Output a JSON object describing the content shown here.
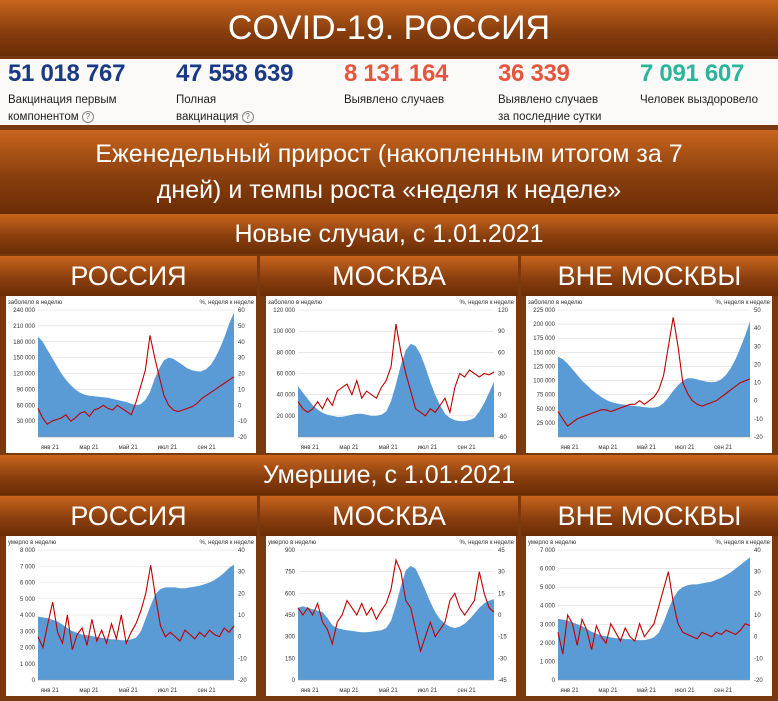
{
  "header": {
    "title": "COVID-19. РОССИЯ"
  },
  "stats": [
    {
      "value": "51 018 767",
      "label_1": "Вакцинация первым",
      "label_2": "компонентом",
      "color": "#1a3a86",
      "has_info": true
    },
    {
      "value": "47 558 639",
      "label_1": "Полная",
      "label_2": "вакцинация",
      "color": "#1a3a86",
      "has_info": true
    },
    {
      "value": "8 131 164",
      "label_1": "Выявлено случаев",
      "label_2": "",
      "color": "#e8553f",
      "has_info": false
    },
    {
      "value": "36 339",
      "label_1": "Выявлено случаев",
      "label_2": "за последние сутки",
      "color": "#e8553f",
      "has_info": false
    },
    {
      "value": "7 091 607",
      "label_1": "Человек выздоровело",
      "label_2": "",
      "color": "#2bb59a",
      "has_info": false
    }
  ],
  "sections": {
    "weekly_line_1": "Еженедельный прирост (накопленным итогом за 7",
    "weekly_line_2": "дней) и темпы роста «неделя к неделе»",
    "new_cases": "Новые случаи, с 1.01.2021",
    "deaths": "Умершие, с 1.01.2021"
  },
  "panel_titles": {
    "russia": "РОССИЯ",
    "moscow": "МОСКВА",
    "outside": "ВНЕ МОСКВЫ"
  },
  "colors": {
    "area": "#5b9bd5",
    "line": "#c00000",
    "band": "#8a3f0e"
  },
  "chart_data": [
    {
      "id": "cases-russia",
      "type": "area",
      "ylabel_left": "заболело в неделю",
      "ylabel_right": "%, неделя к неделе",
      "x_ticks": [
        "янв 21",
        "мар 21",
        "май 21",
        "июл 21",
        "сен 21"
      ],
      "y_left_ticks": [
        0,
        30000,
        60000,
        90000,
        120000,
        150000,
        180000,
        210000,
        240000
      ],
      "y_left_ticks_shown": [
        "",
        "30 000",
        "60 000",
        "90 000",
        "120 000",
        "150 000",
        "180 000",
        "210 000",
        "240 000"
      ],
      "y_right_ticks": [
        -20,
        -10,
        0,
        10,
        20,
        30,
        40,
        50,
        60
      ],
      "ylim_left": [
        0,
        240000
      ],
      "ylim_right": [
        -20,
        60
      ],
      "series": [
        {
          "values": [
            190000,
            180000,
            165000,
            150000,
            135000,
            120000,
            108000,
            98000,
            90000,
            84000,
            80000,
            78000,
            77000,
            76000,
            75000,
            74000,
            72000,
            70000,
            68000,
            66000,
            63000,
            60000,
            62000,
            70000,
            85000,
            110000,
            130000,
            145000,
            150000,
            148000,
            142000,
            136000,
            130000,
            126000,
            124000,
            124000,
            128000,
            136000,
            150000,
            168000,
            190000,
            215000,
            235000
          ]
        },
        {
          "values": [
            -2,
            -8,
            -12,
            -10,
            -9,
            -8,
            -6,
            -10,
            -8,
            -5,
            -4,
            -7,
            -3,
            -2,
            0,
            -2,
            -3,
            0,
            -2,
            -4,
            -6,
            2,
            12,
            22,
            44,
            30,
            18,
            6,
            0,
            -3,
            -4,
            -3,
            -2,
            -1,
            1,
            4,
            6,
            8,
            10,
            12,
            14,
            16,
            18
          ]
        }
      ]
    },
    {
      "id": "cases-moscow",
      "type": "area",
      "ylabel_left": "заболело в неделю",
      "ylabel_right": "%, неделя к неделе",
      "x_ticks": [
        "янв 21",
        "мар 21",
        "май 21",
        "июл 21",
        "сен 21"
      ],
      "y_left_ticks": [
        0,
        20000,
        40000,
        60000,
        80000,
        100000,
        120000
      ],
      "y_left_ticks_shown": [
        "",
        "20 000",
        "40 000",
        "60 000",
        "80 000",
        "100 000",
        "120 000"
      ],
      "y_right_ticks": [
        -60,
        -30,
        0,
        30,
        60,
        90,
        120
      ],
      "ylim_left": [
        0,
        120000
      ],
      "ylim_right": [
        -60,
        120
      ],
      "series": [
        {
          "values": [
            48000,
            42000,
            36000,
            30000,
            26000,
            23000,
            21000,
            20000,
            19000,
            19000,
            20000,
            21000,
            22000,
            22000,
            21000,
            20000,
            20000,
            21000,
            24000,
            34000,
            50000,
            68000,
            82000,
            88000,
            86000,
            78000,
            66000,
            52000,
            40000,
            30000,
            22000,
            18000,
            16000,
            15000,
            15000,
            16000,
            18000,
            24000,
            32000,
            42000,
            52000
          ]
        },
        {
          "values": [
            -10,
            -20,
            -25,
            -20,
            -10,
            -20,
            -5,
            -15,
            5,
            10,
            15,
            0,
            20,
            -5,
            5,
            0,
            -5,
            10,
            20,
            40,
            100,
            60,
            30,
            5,
            -20,
            -25,
            -30,
            -20,
            -25,
            -15,
            -5,
            -25,
            10,
            30,
            25,
            35,
            30,
            25,
            30,
            28,
            32
          ]
        }
      ]
    },
    {
      "id": "cases-outside",
      "type": "area",
      "ylabel_left": "заболело в неделю",
      "ylabel_right": "%, неделя к неделе",
      "x_ticks": [
        "янв 21",
        "мар 21",
        "май 21",
        "июл 21",
        "сен 21"
      ],
      "y_left_ticks": [
        0,
        25000,
        50000,
        75000,
        100000,
        125000,
        150000,
        175000,
        200000,
        225000
      ],
      "y_left_ticks_shown": [
        "",
        "25 000",
        "50 000",
        "75 000",
        "100 000",
        "125 000",
        "150 000",
        "175 000",
        "200 000",
        "225 000"
      ],
      "y_right_ticks": [
        -20,
        -10,
        0,
        10,
        20,
        30,
        40,
        50
      ],
      "ylim_left": [
        0,
        225000
      ],
      "ylim_right": [
        -20,
        50
      ],
      "series": [
        {
          "values": [
            142000,
            138000,
            130000,
            120000,
            110000,
            100000,
            92000,
            84000,
            77000,
            71000,
            66000,
            62000,
            60000,
            58000,
            57000,
            56000,
            55000,
            54000,
            53000,
            52000,
            52000,
            54000,
            60000,
            70000,
            82000,
            92000,
            100000,
            104000,
            104000,
            102000,
            100000,
            98000,
            97000,
            98000,
            102000,
            110000,
            122000,
            138000,
            158000,
            180000,
            205000
          ]
        },
        {
          "values": [
            -6,
            -10,
            -14,
            -12,
            -10,
            -9,
            -8,
            -7,
            -6,
            -5,
            -5,
            -6,
            -5,
            -4,
            -3,
            -2,
            -2,
            0,
            -2,
            0,
            2,
            6,
            14,
            30,
            46,
            30,
            10,
            4,
            0,
            -2,
            -3,
            -2,
            -1,
            0,
            2,
            4,
            6,
            8,
            10,
            11,
            12
          ]
        }
      ]
    },
    {
      "id": "deaths-russia",
      "type": "area",
      "ylabel_left": "умерло в неделю",
      "ylabel_right": "%, неделя к неделе",
      "x_ticks": [
        "янв 21",
        "мар 21",
        "май 21",
        "июл 21",
        "сен 21"
      ],
      "y_left_ticks": [
        0,
        1000,
        2000,
        3000,
        4000,
        5000,
        6000,
        7000,
        8000
      ],
      "y_left_ticks_shown": [
        "0",
        "1 000",
        "2 000",
        "3 000",
        "4 000",
        "5 000",
        "6 000",
        "7 000",
        "8 000"
      ],
      "y_right_ticks": [
        -20,
        -10,
        0,
        10,
        20,
        30,
        40
      ],
      "ylim_left": [
        0,
        8000
      ],
      "ylim_right": [
        -20,
        40
      ],
      "series": [
        {
          "values": [
            3900,
            3850,
            3800,
            3700,
            3600,
            3400,
            3200,
            3000,
            2900,
            2800,
            2750,
            2700,
            2650,
            2600,
            2550,
            2500,
            2500,
            2450,
            2450,
            2500,
            2600,
            3000,
            3800,
            4600,
            5300,
            5600,
            5700,
            5700,
            5700,
            5650,
            5650,
            5700,
            5750,
            5800,
            5900,
            6000,
            6150,
            6350,
            6600,
            6900,
            7100
          ]
        },
        {
          "values": [
            0,
            -5,
            6,
            16,
            2,
            -3,
            10,
            -6,
            1,
            4,
            -4,
            8,
            -2,
            3,
            -3,
            6,
            -1,
            10,
            -3,
            2,
            6,
            12,
            20,
            33,
            18,
            5,
            0,
            2,
            0,
            -2,
            3,
            1,
            -1,
            2,
            0,
            3,
            1,
            0,
            4,
            2,
            5
          ]
        }
      ]
    },
    {
      "id": "deaths-moscow",
      "type": "area",
      "ylabel_left": "умерло в неделю",
      "ylabel_right": "%, неделя к неделе",
      "x_ticks": [
        "янв 21",
        "мар 21",
        "май 21",
        "июл 21",
        "сен 21"
      ],
      "y_left_ticks": [
        0,
        150,
        300,
        450,
        600,
        750,
        900
      ],
      "y_left_ticks_shown": [
        "0",
        "150",
        "300",
        "450",
        "600",
        "750",
        "900"
      ],
      "y_right_ticks": [
        -45,
        -30,
        -15,
        0,
        15,
        30,
        45
      ],
      "ylim_left": [
        0,
        900
      ],
      "ylim_right": [
        -45,
        45
      ],
      "series": [
        {
          "values": [
            500,
            510,
            500,
            490,
            480,
            470,
            430,
            380,
            360,
            350,
            345,
            340,
            335,
            330,
            330,
            335,
            340,
            345,
            360,
            410,
            520,
            650,
            760,
            790,
            770,
            700,
            620,
            540,
            470,
            420,
            390,
            370,
            360,
            370,
            390,
            420,
            460,
            500,
            530,
            550,
            560
          ]
        },
        {
          "values": [
            5,
            0,
            5,
            0,
            8,
            -5,
            -10,
            -20,
            -5,
            0,
            10,
            5,
            0,
            8,
            0,
            5,
            -3,
            3,
            8,
            18,
            38,
            30,
            10,
            5,
            -10,
            -25,
            -15,
            -5,
            -15,
            -10,
            -5,
            10,
            15,
            5,
            0,
            5,
            10,
            30,
            15,
            5,
            2
          ]
        }
      ]
    },
    {
      "id": "deaths-outside",
      "type": "area",
      "ylabel_left": "умерло в неделю",
      "ylabel_right": "%, неделя к неделе",
      "x_ticks": [
        "янв 21",
        "мар 21",
        "май 21",
        "июл 21",
        "сен 21"
      ],
      "y_left_ticks": [
        0,
        1000,
        2000,
        3000,
        4000,
        5000,
        6000,
        7000
      ],
      "y_left_ticks_shown": [
        "0",
        "1 000",
        "2 000",
        "3 000",
        "4 000",
        "5 000",
        "6 000",
        "7 000"
      ],
      "y_right_ticks": [
        -20,
        -10,
        0,
        10,
        20,
        30,
        40
      ],
      "ylim_left": [
        0,
        7000
      ],
      "ylim_right": [
        -20,
        40
      ],
      "series": [
        {
          "values": [
            3300,
            3250,
            3200,
            3100,
            3000,
            2900,
            2750,
            2600,
            2500,
            2400,
            2350,
            2300,
            2250,
            2250,
            2200,
            2200,
            2150,
            2150,
            2150,
            2200,
            2300,
            2550,
            3100,
            3800,
            4400,
            4800,
            5000,
            5100,
            5150,
            5150,
            5200,
            5250,
            5300,
            5400,
            5500,
            5650,
            5800,
            6000,
            6200,
            6400,
            6600
          ]
        },
        {
          "values": [
            2,
            -8,
            10,
            6,
            -4,
            8,
            3,
            -6,
            5,
            0,
            -3,
            6,
            2,
            -2,
            4,
            0,
            -2,
            6,
            0,
            3,
            6,
            14,
            22,
            30,
            16,
            6,
            2,
            1,
            0,
            -1,
            2,
            1,
            0,
            2,
            1,
            3,
            2,
            1,
            3,
            6,
            5
          ]
        }
      ]
    }
  ]
}
